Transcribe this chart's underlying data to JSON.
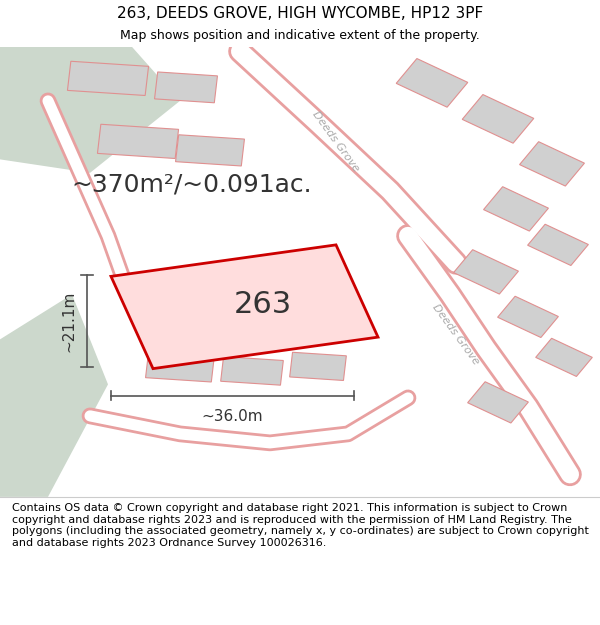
{
  "title": "263, DEEDS GROVE, HIGH WYCOMBE, HP12 3PF",
  "subtitle": "Map shows position and indicative extent of the property.",
  "area_text": "~370m²/~0.091ac.",
  "label_263": "263",
  "dim_width": "~36.0m",
  "dim_height": "~21.1m",
  "copyright_text": "Contains OS data © Crown copyright and database right 2021. This information is subject to Crown copyright and database rights 2023 and is reproduced with the permission of HM Land Registry. The polygons (including the associated geometry, namely x, y co-ordinates) are subject to Crown copyright and database rights 2023 Ordnance Survey 100026316.",
  "bg_map_color": "#f0ede8",
  "bg_footer_color": "#f0f0f0",
  "road_color": "#ffffff",
  "road_stroke_color": "#e8a0a0",
  "building_color": "#d0d0d0",
  "building_stroke_color": "#e09090",
  "green_area_color": "#ccd8cc",
  "highlight_fill": "#ffdddd",
  "highlight_stroke": "#cc0000",
  "title_fontsize": 11,
  "subtitle_fontsize": 9,
  "area_fontsize": 18,
  "label_fontsize": 22,
  "dim_fontsize": 11,
  "copyright_fontsize": 8
}
